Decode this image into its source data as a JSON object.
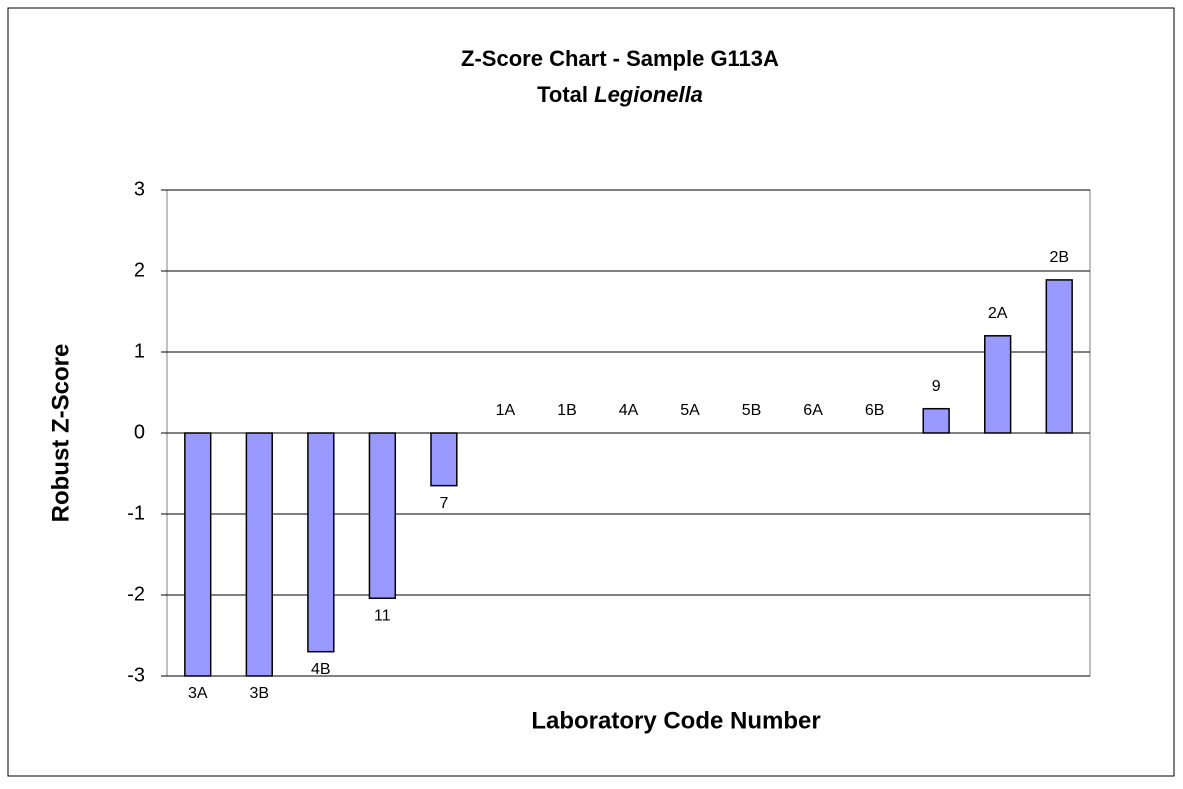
{
  "chart_data": {
    "type": "bar",
    "title": "Z-Score Chart - Sample G113A",
    "subtitle": [
      "Total",
      "Legionella"
    ],
    "x_label": "Laboratory Code Number",
    "y_label": "Robust Z-Score",
    "categories": [
      "3A",
      "3B",
      "4B",
      "11",
      "7",
      "1A",
      "1B",
      "4A",
      "5A",
      "5B",
      "6A",
      "6B",
      "9",
      "2A",
      "2B"
    ],
    "values": [
      -3,
      -3,
      -2.7,
      -2.04,
      -0.65,
      0,
      0,
      0,
      0,
      0,
      0,
      0,
      0.3,
      1.2,
      1.89
    ],
    "color": "#9999ff",
    "ylim": [
      -3,
      3
    ],
    "yticks": [
      -3,
      -2,
      -1,
      0,
      1,
      2,
      3
    ],
    "grid": true
  }
}
